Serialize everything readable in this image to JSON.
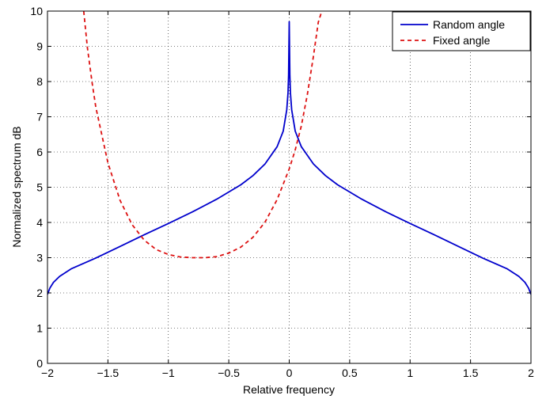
{
  "chart_data": {
    "type": "line",
    "title": "",
    "xlabel": "Relative frequency",
    "ylabel": "Normalized spectrum dB",
    "xlim": [
      -2,
      2
    ],
    "ylim": [
      0,
      10
    ],
    "xticks": [
      -2,
      -1.5,
      -1,
      -0.5,
      0,
      0.5,
      1,
      1.5,
      2
    ],
    "xtick_labels": [
      "−2",
      "−1.5",
      "−1",
      "−0.5",
      "0",
      "0.5",
      "1",
      "1.5",
      "2"
    ],
    "yticks": [
      0,
      1,
      2,
      3,
      4,
      5,
      6,
      7,
      8,
      9,
      10
    ],
    "ytick_labels": [
      "0",
      "1",
      "2",
      "3",
      "4",
      "5",
      "6",
      "7",
      "8",
      "9",
      "10"
    ],
    "grid": true,
    "legend_position": "top-right",
    "series": [
      {
        "name": "Random angle",
        "color": "#0000cc",
        "style": "solid",
        "x": [
          -2,
          -1.98,
          -1.95,
          -1.9,
          -1.8,
          -1.6,
          -1.4,
          -1.2,
          -1.0,
          -0.8,
          -0.6,
          -0.4,
          -0.3,
          -0.2,
          -0.1,
          -0.05,
          -0.02,
          -0.01,
          -0.005,
          0,
          0.005,
          0.01,
          0.02,
          0.05,
          0.1,
          0.2,
          0.3,
          0.4,
          0.6,
          0.8,
          1.0,
          1.2,
          1.4,
          1.6,
          1.8,
          1.9,
          1.95,
          1.98,
          2
        ],
        "y": [
          1.96,
          2.14,
          2.3,
          2.47,
          2.69,
          2.99,
          3.32,
          3.65,
          3.97,
          4.3,
          4.66,
          5.07,
          5.33,
          5.66,
          6.15,
          6.59,
          7.2,
          7.69,
          8.19,
          9.7,
          8.19,
          7.69,
          7.2,
          6.59,
          6.15,
          5.66,
          5.33,
          5.07,
          4.66,
          4.3,
          3.97,
          3.65,
          3.32,
          2.99,
          2.69,
          2.47,
          2.3,
          2.14,
          1.96
        ]
      },
      {
        "name": "Fixed angle",
        "color": "#dd1111",
        "style": "dashed",
        "x": [
          -1.7,
          -1.67,
          -1.63,
          -1.6,
          -1.5,
          -1.4,
          -1.3,
          -1.2,
          -1.1,
          -1.0,
          -0.9,
          -0.8,
          -0.7,
          -0.6,
          -0.5,
          -0.4,
          -0.3,
          -0.2,
          -0.1,
          0,
          0.05,
          0.1,
          0.15,
          0.2,
          0.24,
          0.27
        ],
        "y": [
          10,
          8.97,
          7.95,
          7.27,
          5.69,
          4.63,
          3.94,
          3.5,
          3.23,
          3.09,
          3.02,
          3.0,
          3.0,
          3.03,
          3.13,
          3.3,
          3.58,
          4.01,
          4.65,
          5.52,
          6.06,
          6.74,
          7.63,
          8.72,
          9.68,
          10
        ]
      }
    ]
  }
}
